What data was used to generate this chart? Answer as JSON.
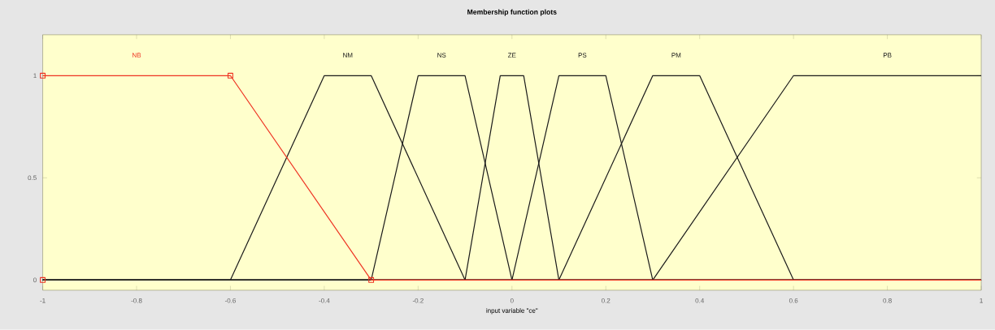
{
  "chart_data": {
    "type": "line",
    "title": "Membership function plots",
    "xlabel": "input variable \"ce\"",
    "xlim": [
      -1,
      1
    ],
    "ylim": [
      -0.05,
      1.2
    ],
    "xticks": [
      -1,
      -0.8,
      -0.6,
      -0.4,
      -0.2,
      0,
      0.2,
      0.4,
      0.6,
      0.8,
      1
    ],
    "yticks": [
      0,
      0.5,
      1
    ],
    "grid": false,
    "legend": false,
    "marker": "none",
    "series": [
      {
        "name": "NB",
        "color": "#ee3322",
        "x": [
          -1,
          -0.6,
          -0.3,
          1
        ],
        "values": [
          1,
          1,
          0,
          0
        ]
      },
      {
        "name": "NM",
        "color": "#1a1a1a",
        "x": [
          -1,
          -0.6,
          -0.4,
          -0.3,
          -0.1,
          1
        ],
        "values": [
          0,
          0,
          1,
          1,
          0,
          0
        ]
      },
      {
        "name": "NS",
        "color": "#1a1a1a",
        "x": [
          -1,
          -0.3,
          -0.2,
          -0.1,
          0,
          1
        ],
        "values": [
          0,
          0,
          1,
          1,
          0,
          0
        ]
      },
      {
        "name": "ZE",
        "color": "#1a1a1a",
        "x": [
          -1,
          -0.1,
          -0.025,
          0.025,
          0.1,
          1
        ],
        "values": [
          0,
          0,
          1,
          1,
          0,
          0
        ]
      },
      {
        "name": "PS",
        "color": "#1a1a1a",
        "x": [
          -1,
          0,
          0.1,
          0.2,
          0.3,
          1
        ],
        "values": [
          0,
          0,
          1,
          1,
          0,
          0
        ]
      },
      {
        "name": "PM",
        "color": "#1a1a1a",
        "x": [
          -1,
          0.1,
          0.3,
          0.4,
          0.6,
          1
        ],
        "values": [
          0,
          0,
          1,
          1,
          0,
          0
        ]
      },
      {
        "name": "PB",
        "color": "#1a1a1a",
        "x": [
          -1,
          0.3,
          0.6,
          1
        ],
        "values": [
          0,
          0,
          1,
          1
        ]
      },
      {
        "type": "scatter",
        "color": "#ee3322",
        "marker": "square",
        "x": [
          -1,
          -1,
          -0.6,
          -0.3
        ],
        "values": [
          1,
          0,
          1,
          0
        ]
      }
    ]
  }
}
